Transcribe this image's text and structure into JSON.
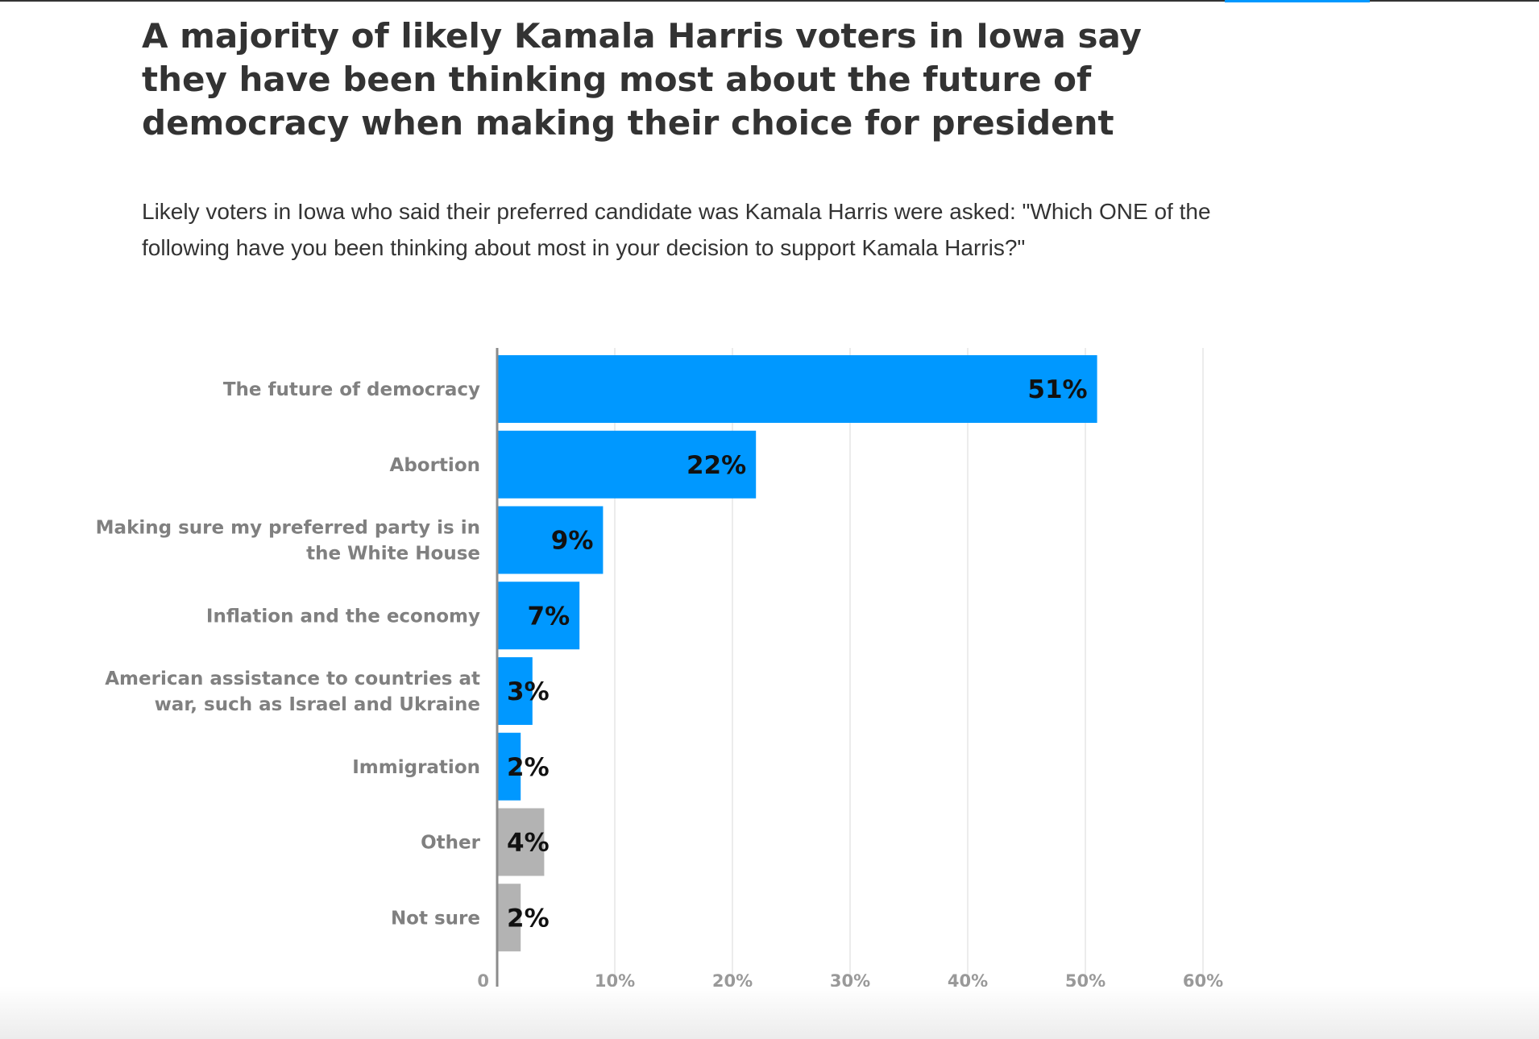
{
  "header": {
    "title": "A majority of likely Kamala Harris voters in Iowa say they have been thinking most about the future of democracy when making their choice for president",
    "subtitle": "Likely voters in Iowa who said their preferred candidate was Kamala Harris were asked: \"Which ONE of the following have you been thinking about most in your decision to support Kamala Harris?\""
  },
  "chart_data": {
    "type": "bar",
    "orientation": "horizontal",
    "categories": [
      [
        "The future of democracy"
      ],
      [
        "Abortion"
      ],
      [
        "Making sure my preferred party is in",
        "the White House"
      ],
      [
        "Inflation and the economy"
      ],
      [
        "American assistance to countries at",
        "war, such as Israel and Ukraine"
      ],
      [
        "Immigration"
      ],
      [
        "Other"
      ],
      [
        "Not sure"
      ]
    ],
    "values": [
      51,
      22,
      9,
      7,
      3,
      2,
      4,
      2
    ],
    "value_labels": [
      "51%",
      "22%",
      "9%",
      "7%",
      "3%",
      "2%",
      "4%",
      "2%"
    ],
    "colors": [
      "#0098ff",
      "#0098ff",
      "#0098ff",
      "#0098ff",
      "#0098ff",
      "#0098ff",
      "#b3b3b3",
      "#b3b3b3"
    ],
    "xlim": [
      0,
      60
    ],
    "ticks": [
      0,
      10,
      20,
      30,
      40,
      50,
      60
    ],
    "tick_labels": [
      "0",
      "10%",
      "20%",
      "30%",
      "40%",
      "50%",
      "60%"
    ],
    "grid": true,
    "legend": "none"
  }
}
